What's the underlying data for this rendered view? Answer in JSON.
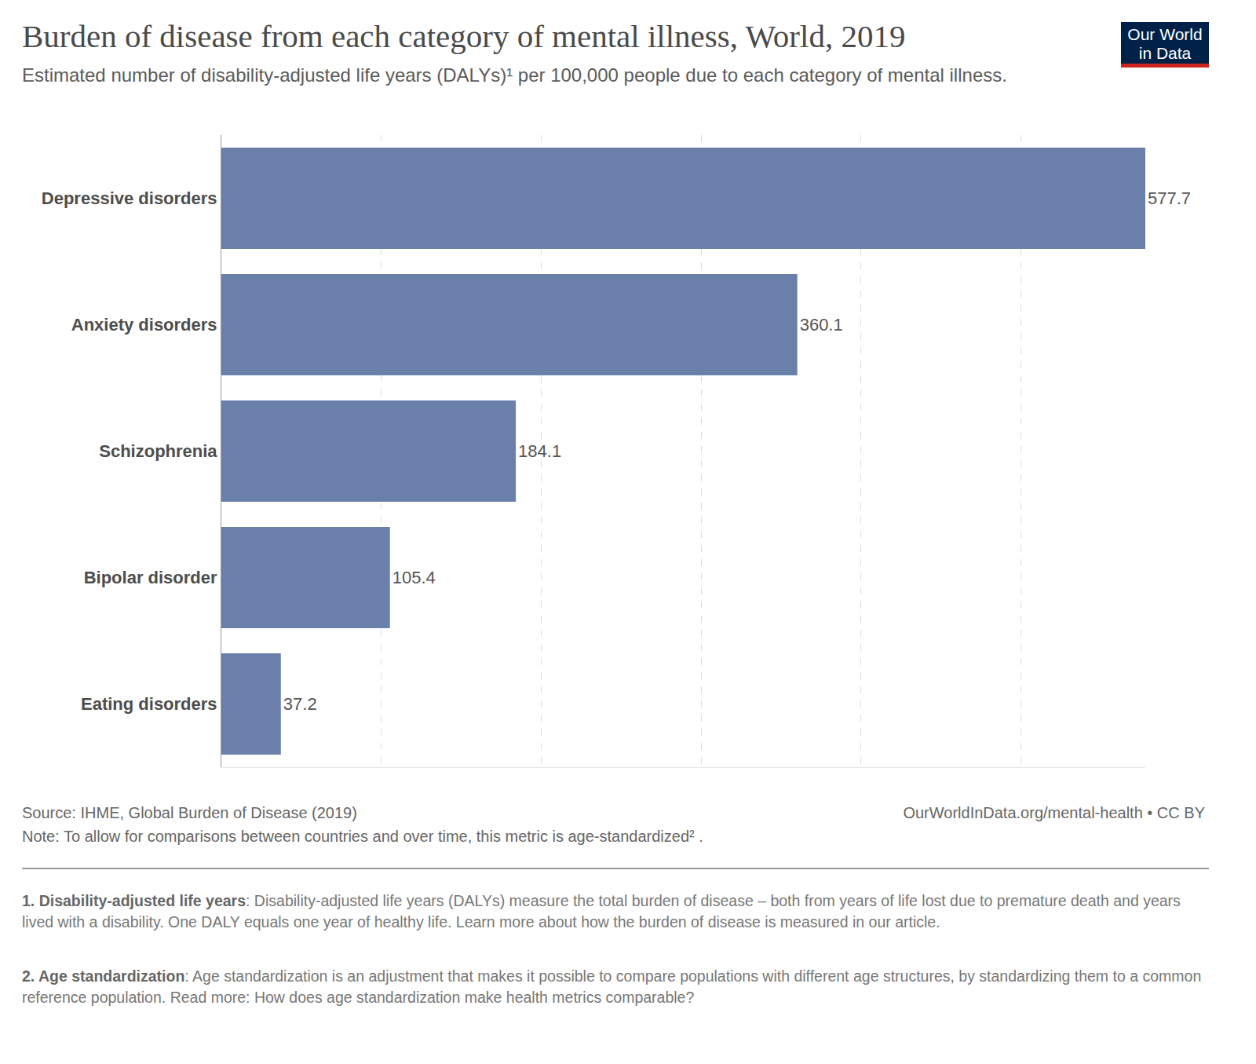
{
  "chart_data": {
    "type": "bar",
    "orientation": "horizontal",
    "title": "Burden of disease from each category of mental illness, World, 2019",
    "subtitle": "Estimated number of disability-adjusted life years (DALYs)¹ per 100,000 people due to each category of mental illness.",
    "categories": [
      "Depressive disorders",
      "Anxiety disorders",
      "Schizophrenia",
      "Bipolar disorder",
      "Eating disorders"
    ],
    "values": [
      577.7,
      360.1,
      184.1,
      105.4,
      37.2
    ],
    "color": "#6a80ab",
    "xlim": [
      0,
      577.7
    ],
    "xticks": [
      0,
      100,
      200,
      300,
      400,
      500
    ],
    "grid": true,
    "data_labels": true,
    "tick_labels": "y",
    "logo": "Our World in Data",
    "source": "Source: IHME, Global Burden of Disease (2019)",
    "url": "OurWorldInData.org/mental-health • CC BY",
    "note": "Note: To allow for comparisons between countries and over time, this metric is age-standardized² .",
    "footnotes": [
      {
        "term": "1. Disability-adjusted life years",
        "text": ": Disability-adjusted life years (DALYs) measure the total burden of disease – both from years of life lost due to premature death and years lived with a disability. One DALY equals one year of healthy life. Learn more about how the burden of disease is measured in our article."
      },
      {
        "term": "2. Age standardization",
        "text": ": Age standardization is an adjustment that makes it possible to compare populations with different age structures, by standardizing them to a common reference population. Read more: How does age standardization make health metrics comparable?"
      }
    ]
  }
}
